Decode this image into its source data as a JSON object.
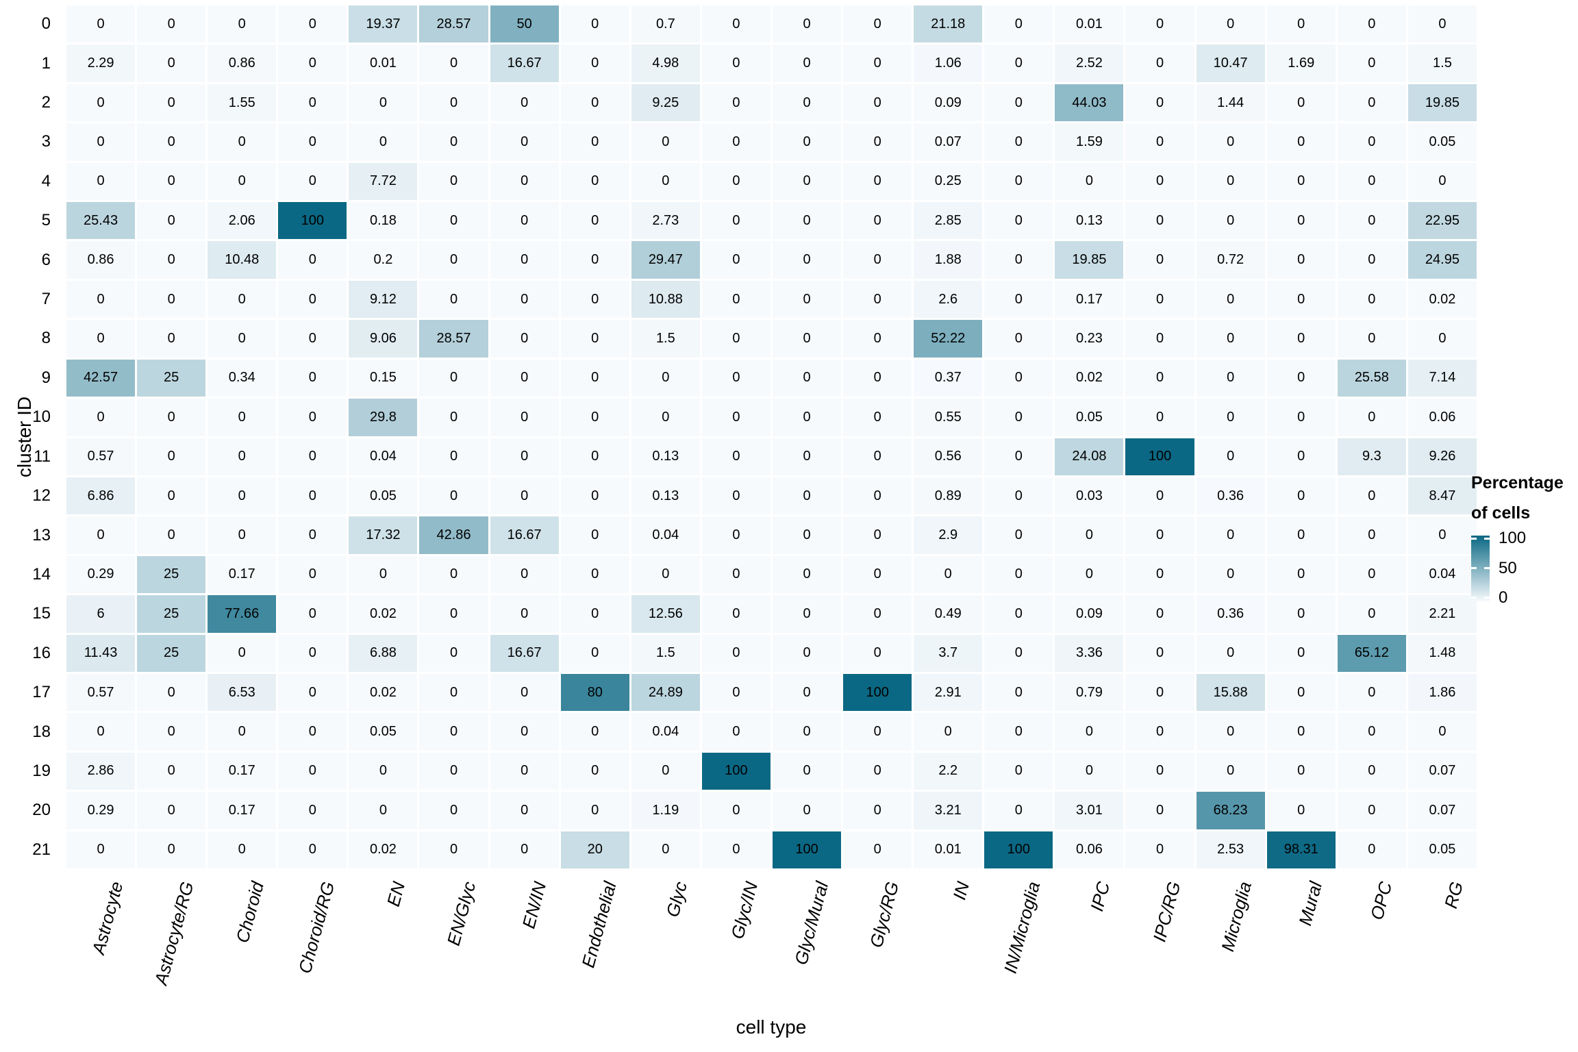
{
  "chart_data": {
    "type": "heatmap",
    "xlabel": "cell type",
    "ylabel": "cluster ID",
    "grid": false,
    "legend_position": "right",
    "value_range": [
      0,
      100
    ],
    "colors": {
      "low": "#f7fafd",
      "high": "#0b6884",
      "gap": "#ffffff",
      "text": "#000000"
    },
    "legend": {
      "title_line1": "Percentage",
      "title_line2": "of cells",
      "ticks": [
        100,
        50,
        0
      ]
    },
    "rows": [
      "0",
      "1",
      "2",
      "3",
      "4",
      "5",
      "6",
      "7",
      "8",
      "9",
      "10",
      "11",
      "12",
      "13",
      "14",
      "15",
      "16",
      "17",
      "18",
      "19",
      "20",
      "21"
    ],
    "columns": [
      "Astrocyte",
      "Astrocyte/RG",
      "Choroid",
      "Choroid/RG",
      "EN",
      "EN/Glyc",
      "EN/IN",
      "Endothelial",
      "Glyc",
      "Glyc/IN",
      "Glyc/Mural",
      "Glyc/RG",
      "IN",
      "IN/Microglia",
      "IPC",
      "IPC/RG",
      "Microglia",
      "Mural",
      "OPC",
      "RG"
    ],
    "values": [
      [
        0,
        0,
        0,
        0,
        19.37,
        28.57,
        50,
        0,
        0.7,
        0,
        0,
        0,
        21.18,
        0,
        0.01,
        0,
        0,
        0,
        0,
        0
      ],
      [
        2.29,
        0,
        0.86,
        0,
        0.01,
        0,
        16.67,
        0,
        4.98,
        0,
        0,
        0,
        1.06,
        0,
        2.52,
        0,
        10.47,
        1.69,
        0,
        1.5
      ],
      [
        0,
        0,
        1.55,
        0,
        0,
        0,
        0,
        0,
        9.25,
        0,
        0,
        0,
        0.09,
        0,
        44.03,
        0,
        1.44,
        0,
        0,
        19.85
      ],
      [
        0,
        0,
        0,
        0,
        0,
        0,
        0,
        0,
        0,
        0,
        0,
        0,
        0.07,
        0,
        1.59,
        0,
        0,
        0,
        0,
        0.05
      ],
      [
        0,
        0,
        0,
        0,
        7.72,
        0,
        0,
        0,
        0,
        0,
        0,
        0,
        0.25,
        0,
        0,
        0,
        0,
        0,
        0,
        0
      ],
      [
        25.43,
        0,
        2.06,
        100,
        0.18,
        0,
        0,
        0,
        2.73,
        0,
        0,
        0,
        2.85,
        0,
        0.13,
        0,
        0,
        0,
        0,
        22.95
      ],
      [
        0.86,
        0,
        10.48,
        0,
        0.2,
        0,
        0,
        0,
        29.47,
        0,
        0,
        0,
        1.88,
        0,
        19.85,
        0,
        0.72,
        0,
        0,
        24.95
      ],
      [
        0,
        0,
        0,
        0,
        9.12,
        0,
        0,
        0,
        10.88,
        0,
        0,
        0,
        2.6,
        0,
        0.17,
        0,
        0,
        0,
        0,
        0.02
      ],
      [
        0,
        0,
        0,
        0,
        9.06,
        28.57,
        0,
        0,
        1.5,
        0,
        0,
        0,
        52.22,
        0,
        0.23,
        0,
        0,
        0,
        0,
        0
      ],
      [
        42.57,
        25,
        0.34,
        0,
        0.15,
        0,
        0,
        0,
        0,
        0,
        0,
        0,
        0.37,
        0,
        0.02,
        0,
        0,
        0,
        25.58,
        7.14
      ],
      [
        0,
        0,
        0,
        0,
        29.8,
        0,
        0,
        0,
        0,
        0,
        0,
        0,
        0.55,
        0,
        0.05,
        0,
        0,
        0,
        0,
        0.06
      ],
      [
        0.57,
        0,
        0,
        0,
        0.04,
        0,
        0,
        0,
        0.13,
        0,
        0,
        0,
        0.56,
        0,
        24.08,
        100,
        0,
        0,
        9.3,
        9.26
      ],
      [
        6.86,
        0,
        0,
        0,
        0.05,
        0,
        0,
        0,
        0.13,
        0,
        0,
        0,
        0.89,
        0,
        0.03,
        0,
        0.36,
        0,
        0,
        8.47
      ],
      [
        0,
        0,
        0,
        0,
        17.32,
        42.86,
        16.67,
        0,
        0.04,
        0,
        0,
        0,
        2.9,
        0,
        0,
        0,
        0,
        0,
        0,
        0
      ],
      [
        0.29,
        25,
        0.17,
        0,
        0,
        0,
        0,
        0,
        0,
        0,
        0,
        0,
        0,
        0,
        0,
        0,
        0,
        0,
        0,
        0.04
      ],
      [
        6,
        25,
        77.66,
        0,
        0.02,
        0,
        0,
        0,
        12.56,
        0,
        0,
        0,
        0.49,
        0,
        0.09,
        0,
        0.36,
        0,
        0,
        2.21
      ],
      [
        11.43,
        25,
        0,
        0,
        6.88,
        0,
        16.67,
        0,
        1.5,
        0,
        0,
        0,
        3.7,
        0,
        3.36,
        0,
        0,
        0,
        65.12,
        1.48
      ],
      [
        0.57,
        0,
        6.53,
        0,
        0.02,
        0,
        0,
        80,
        24.89,
        0,
        0,
        100,
        2.91,
        0,
        0.79,
        0,
        15.88,
        0,
        0,
        1.86
      ],
      [
        0,
        0,
        0,
        0,
        0.05,
        0,
        0,
        0,
        0.04,
        0,
        0,
        0,
        0,
        0,
        0,
        0,
        0,
        0,
        0,
        0
      ],
      [
        2.86,
        0,
        0.17,
        0,
        0,
        0,
        0,
        0,
        0,
        100,
        0,
        0,
        2.2,
        0,
        0,
        0,
        0,
        0,
        0,
        0.07
      ],
      [
        0.29,
        0,
        0.17,
        0,
        0,
        0,
        0,
        0,
        1.19,
        0,
        0,
        0,
        3.21,
        0,
        3.01,
        0,
        68.23,
        0,
        0,
        0.07
      ],
      [
        0,
        0,
        0,
        0,
        0.02,
        0,
        0,
        20,
        0,
        0,
        100,
        0,
        0.01,
        100,
        0.06,
        0,
        2.53,
        98.31,
        0,
        0.05
      ]
    ]
  }
}
